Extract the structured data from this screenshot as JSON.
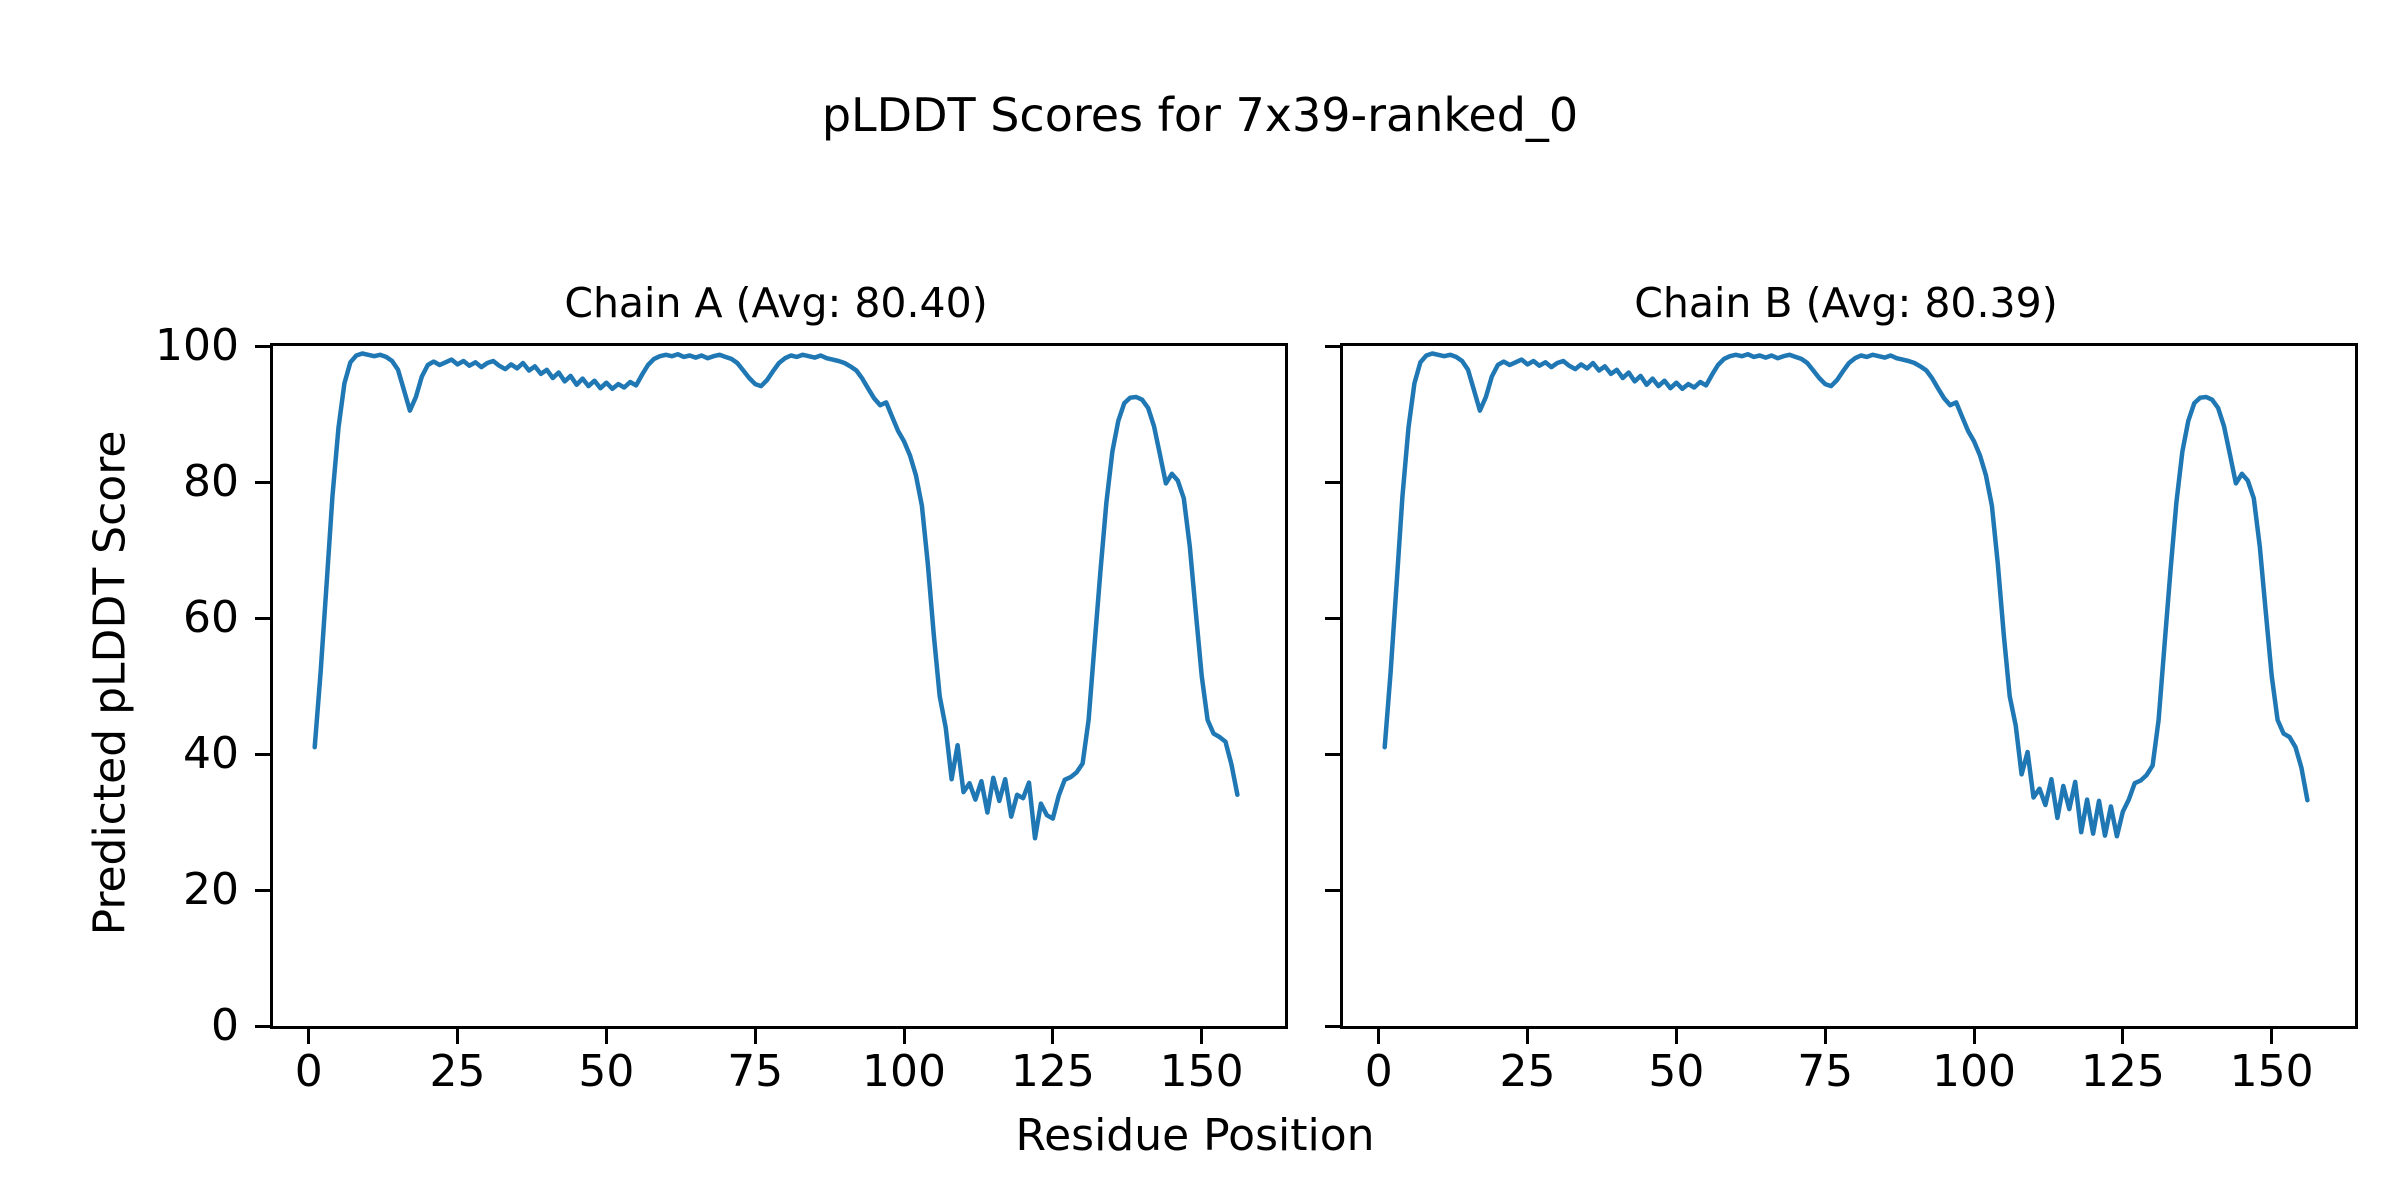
{
  "figure": {
    "suptitle": "pLDDT Scores for 7x39-ranked_0",
    "xlabel": "Residue Position",
    "ylabel": "Predicted pLDDT Score",
    "background_color": "#ffffff",
    "line_color": "#1f77b4",
    "axis_color": "#000000"
  },
  "chart_data": [
    {
      "type": "line",
      "title": "Chain A (Avg: 80.40)",
      "chain": "A",
      "average_plddt": 80.4,
      "xlabel": "Residue Position",
      "ylabel": "Predicted pLDDT Score",
      "xlim": [
        -6,
        164
      ],
      "ylim": [
        0,
        100
      ],
      "xticks": [
        0,
        25,
        50,
        75,
        100,
        125,
        150
      ],
      "yticks": [
        0,
        20,
        40,
        60,
        80,
        100
      ],
      "show_ytick_labels": true,
      "grid": false,
      "legend": "none",
      "series": [
        {
          "name": "pLDDT",
          "color": "#1f77b4",
          "x_start": 1,
          "x_step": 1,
          "y": [
            41.0,
            52.0,
            65.0,
            78.0,
            88.0,
            94.5,
            97.6,
            98.6,
            98.9,
            98.7,
            98.5,
            98.7,
            98.4,
            97.8,
            96.5,
            93.5,
            90.5,
            92.5,
            95.5,
            97.2,
            97.7,
            97.2,
            97.6,
            98.0,
            97.3,
            97.8,
            97.1,
            97.6,
            96.9,
            97.5,
            97.8,
            97.1,
            96.6,
            97.3,
            96.7,
            97.5,
            96.4,
            97.0,
            95.9,
            96.5,
            95.3,
            96.1,
            94.8,
            95.6,
            94.3,
            95.2,
            94.1,
            94.9,
            93.8,
            94.6,
            93.7,
            94.4,
            93.9,
            94.7,
            94.2,
            95.8,
            97.2,
            98.1,
            98.5,
            98.7,
            98.5,
            98.8,
            98.4,
            98.6,
            98.3,
            98.6,
            98.2,
            98.5,
            98.7,
            98.4,
            98.1,
            97.5,
            96.4,
            95.3,
            94.4,
            94.1,
            95.0,
            96.3,
            97.5,
            98.2,
            98.6,
            98.4,
            98.7,
            98.5,
            98.3,
            98.6,
            98.2,
            98.0,
            97.8,
            97.5,
            97.0,
            96.4,
            95.2,
            93.7,
            92.3,
            91.3,
            91.7,
            89.6,
            87.5,
            86.0,
            83.9,
            81.0,
            76.5,
            68.0,
            57.5,
            48.5,
            43.9,
            36.3,
            41.3,
            34.4,
            35.7,
            33.3,
            36.0,
            31.4,
            36.5,
            33.1,
            36.3,
            30.8,
            34.0,
            33.5,
            35.8,
            27.6,
            32.7,
            31.0,
            30.5,
            33.9,
            36.2,
            36.6,
            37.3,
            38.6,
            45.0,
            56.0,
            67.0,
            77.0,
            84.5,
            89.0,
            91.6,
            92.4,
            92.5,
            92.1,
            90.9,
            88.2,
            84.0,
            79.8,
            81.2,
            80.2,
            77.6,
            70.5,
            61.0,
            51.5,
            45.0,
            43.0,
            42.5,
            41.8,
            38.5,
            34.0
          ]
        }
      ]
    },
    {
      "type": "line",
      "title": "Chain B (Avg: 80.39)",
      "chain": "B",
      "average_plddt": 80.39,
      "xlabel": "Residue Position",
      "ylabel": "Predicted pLDDT Score",
      "xlim": [
        -6,
        164
      ],
      "ylim": [
        0,
        100
      ],
      "xticks": [
        0,
        25,
        50,
        75,
        100,
        125,
        150
      ],
      "yticks": [
        0,
        20,
        40,
        60,
        80,
        100
      ],
      "show_ytick_labels": false,
      "grid": false,
      "legend": "none",
      "series": [
        {
          "name": "pLDDT",
          "color": "#1f77b4",
          "x_start": 1,
          "x_step": 1,
          "y": [
            41.0,
            52.0,
            65.0,
            78.0,
            88.0,
            94.5,
            97.6,
            98.6,
            98.9,
            98.7,
            98.5,
            98.7,
            98.4,
            97.8,
            96.5,
            93.5,
            90.5,
            92.5,
            95.5,
            97.2,
            97.7,
            97.2,
            97.6,
            98.0,
            97.3,
            97.8,
            97.1,
            97.6,
            96.9,
            97.5,
            97.8,
            97.1,
            96.6,
            97.3,
            96.7,
            97.5,
            96.4,
            97.0,
            95.9,
            96.5,
            95.3,
            96.1,
            94.8,
            95.6,
            94.3,
            95.2,
            94.1,
            94.9,
            93.8,
            94.6,
            93.7,
            94.4,
            93.9,
            94.7,
            94.2,
            95.8,
            97.2,
            98.1,
            98.5,
            98.7,
            98.5,
            98.8,
            98.4,
            98.6,
            98.3,
            98.6,
            98.2,
            98.5,
            98.7,
            98.4,
            98.1,
            97.5,
            96.4,
            95.3,
            94.4,
            94.1,
            95.0,
            96.3,
            97.5,
            98.2,
            98.6,
            98.4,
            98.7,
            98.5,
            98.3,
            98.6,
            98.2,
            98.0,
            97.8,
            97.5,
            97.0,
            96.4,
            95.2,
            93.7,
            92.3,
            91.3,
            91.7,
            89.6,
            87.5,
            86.0,
            83.9,
            81.0,
            76.5,
            68.0,
            57.5,
            48.5,
            44.2,
            37.0,
            40.3,
            33.6,
            34.9,
            32.5,
            36.3,
            30.6,
            35.3,
            31.9,
            35.9,
            28.5,
            33.3,
            28.3,
            33.1,
            28.0,
            32.3,
            27.9,
            31.5,
            33.3,
            35.7,
            36.1,
            36.9,
            38.3,
            45.0,
            56.0,
            67.0,
            77.0,
            84.5,
            89.0,
            91.6,
            92.4,
            92.5,
            92.1,
            90.9,
            88.2,
            84.0,
            79.8,
            81.2,
            80.2,
            77.6,
            70.5,
            61.0,
            51.5,
            45.0,
            43.0,
            42.5,
            41.0,
            38.0,
            33.2
          ]
        }
      ]
    }
  ]
}
